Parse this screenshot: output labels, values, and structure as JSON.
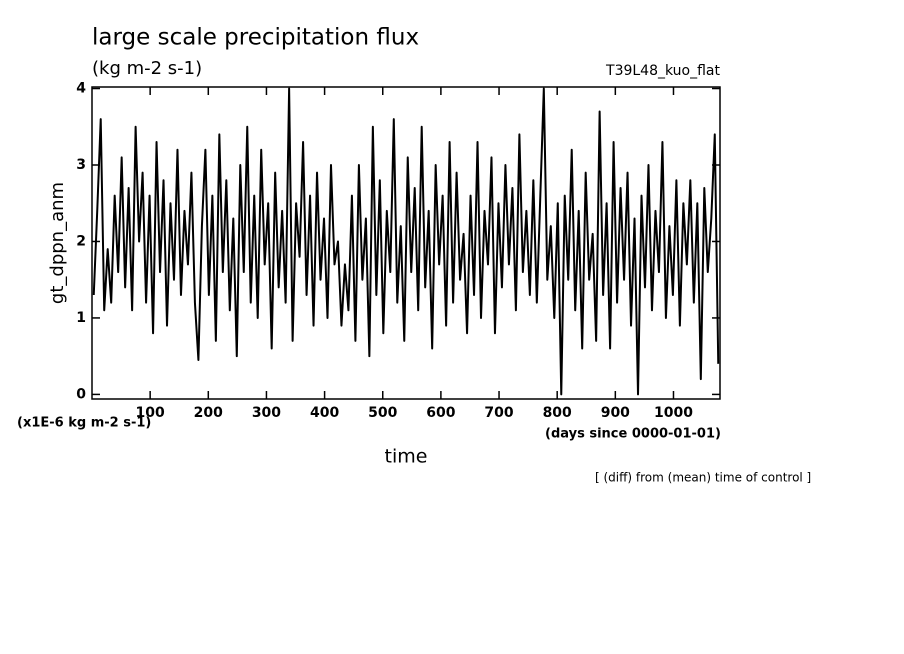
{
  "chart_data": {
    "type": "line",
    "title": "large scale precipitation flux",
    "subtitle": "(kg m-2 s-1)",
    "annotation_right": "T39L48_kuo_flat",
    "ylabel": "gt_dppn_anm",
    "xlabel": "time",
    "y_unit_note": "(x1E-6 kg m-2 s-1)",
    "x_unit_note": "(days since 0000-01-01)",
    "footnote": "[ (diff) from (mean) time of control ]",
    "color": "#000000",
    "xlim": [
      0,
      1080
    ],
    "ylim": [
      -0.06,
      4.02
    ],
    "xticks": [
      100,
      200,
      300,
      400,
      500,
      600,
      700,
      800,
      900,
      1000
    ],
    "yticks": [
      0,
      1,
      2,
      3,
      4
    ],
    "x": [
      3,
      9,
      15,
      21,
      27,
      33,
      39,
      45,
      51,
      57,
      63,
      69,
      75,
      81,
      87,
      93,
      99,
      105,
      111,
      117,
      123,
      129,
      135,
      141,
      147,
      153,
      159,
      165,
      171,
      177,
      183,
      189,
      195,
      201,
      207,
      213,
      219,
      225,
      231,
      237,
      243,
      249,
      255,
      261,
      267,
      273,
      279,
      285,
      291,
      297,
      303,
      309,
      315,
      321,
      327,
      333,
      339,
      345,
      351,
      357,
      363,
      369,
      375,
      381,
      387,
      393,
      399,
      405,
      411,
      417,
      423,
      429,
      435,
      441,
      447,
      453,
      459,
      465,
      471,
      477,
      483,
      489,
      495,
      501,
      507,
      513,
      519,
      525,
      531,
      537,
      543,
      549,
      555,
      561,
      567,
      573,
      579,
      585,
      591,
      597,
      603,
      609,
      615,
      621,
      627,
      633,
      639,
      645,
      651,
      657,
      663,
      669,
      675,
      681,
      687,
      693,
      699,
      705,
      711,
      717,
      723,
      729,
      735,
      741,
      747,
      753,
      759,
      765,
      771,
      777,
      783,
      789,
      795,
      801,
      807,
      813,
      819,
      825,
      831,
      837,
      843,
      849,
      855,
      861,
      867,
      873,
      879,
      885,
      891,
      897,
      903,
      909,
      915,
      921,
      927,
      933,
      939,
      945,
      951,
      957,
      963,
      969,
      975,
      981,
      987,
      993,
      999,
      1005,
      1011,
      1017,
      1023,
      1029,
      1035,
      1041,
      1047,
      1053,
      1059,
      1065,
      1071,
      1077
    ],
    "values": [
      1.3,
      2.4,
      3.6,
      1.1,
      1.9,
      1.2,
      2.6,
      1.6,
      3.1,
      1.4,
      2.7,
      1.1,
      3.5,
      2.0,
      2.9,
      1.2,
      2.6,
      0.8,
      3.3,
      1.6,
      2.8,
      0.9,
      2.5,
      1.5,
      3.2,
      1.3,
      2.4,
      1.7,
      2.9,
      1.2,
      0.45,
      2.2,
      3.2,
      1.3,
      2.6,
      0.7,
      3.4,
      1.6,
      2.8,
      1.1,
      2.3,
      0.5,
      3.0,
      1.6,
      3.5,
      1.2,
      2.6,
      1.0,
      3.2,
      1.7,
      2.5,
      0.6,
      2.9,
      1.4,
      2.4,
      1.2,
      4.0,
      0.7,
      2.5,
      1.8,
      3.3,
      1.3,
      2.6,
      0.9,
      2.9,
      1.5,
      2.3,
      1.0,
      3.0,
      1.7,
      2.0,
      0.9,
      1.7,
      1.1,
      2.6,
      0.7,
      3.0,
      1.5,
      2.3,
      0.5,
      3.5,
      1.3,
      2.8,
      0.8,
      2.4,
      1.6,
      3.6,
      1.2,
      2.2,
      0.7,
      3.1,
      1.6,
      2.7,
      1.1,
      3.5,
      1.4,
      2.4,
      0.6,
      3.0,
      1.7,
      2.6,
      0.9,
      3.3,
      1.2,
      2.9,
      1.5,
      2.1,
      0.8,
      2.6,
      1.3,
      3.3,
      1.0,
      2.4,
      1.7,
      3.1,
      0.8,
      2.5,
      1.4,
      3.0,
      1.7,
      2.7,
      1.1,
      3.4,
      1.6,
      2.4,
      1.3,
      2.8,
      1.2,
      2.6,
      4.0,
      1.5,
      2.2,
      1.0,
      2.5,
      0.0,
      2.6,
      1.5,
      3.2,
      1.1,
      2.4,
      0.6,
      2.9,
      1.5,
      2.1,
      0.7,
      3.7,
      1.3,
      2.5,
      0.6,
      3.3,
      1.2,
      2.7,
      1.5,
      2.9,
      0.9,
      2.3,
      0.0,
      2.6,
      1.4,
      3.0,
      1.1,
      2.4,
      1.6,
      3.3,
      1.0,
      2.2,
      1.3,
      2.8,
      0.9,
      2.5,
      1.7,
      2.8,
      1.2,
      2.5,
      0.2,
      2.7,
      1.6,
      2.3,
      3.4,
      0.4
    ]
  }
}
